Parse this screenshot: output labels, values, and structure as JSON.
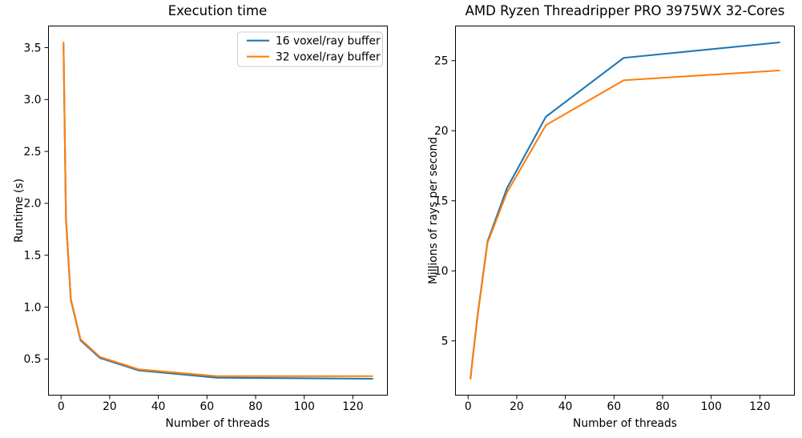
{
  "figure": {
    "background": "#ffffff",
    "text_color": "#000000",
    "accent_blue": "#1f77b4",
    "accent_orange": "#ff7f0e"
  },
  "chart_data": [
    {
      "type": "line",
      "title": "Execution time",
      "xlabel": "Number of threads",
      "ylabel": "Runtime (s)",
      "x": [
        1,
        2,
        4,
        8,
        16,
        32,
        64,
        128
      ],
      "series": [
        {
          "name": "16 voxel/ray buffer",
          "color": "#1f77b4",
          "values": [
            3.52,
            1.85,
            1.07,
            0.68,
            0.51,
            0.39,
            0.32,
            0.31
          ]
        },
        {
          "name": "32 voxel/ray buffer",
          "color": "#ff7f0e",
          "values": [
            3.55,
            1.87,
            1.08,
            0.69,
            0.52,
            0.4,
            0.335,
            0.335
          ]
        }
      ],
      "xlim": [
        -5.35,
        134.35
      ],
      "ylim": [
        0.148,
        3.712
      ],
      "xticks": [
        {
          "v": 0,
          "label": "0"
        },
        {
          "v": 20,
          "label": "20"
        },
        {
          "v": 40,
          "label": "40"
        },
        {
          "v": 60,
          "label": "60"
        },
        {
          "v": 80,
          "label": "80"
        },
        {
          "v": 100,
          "label": "100"
        },
        {
          "v": 120,
          "label": "120"
        }
      ],
      "yticks": [
        {
          "v": 0.5,
          "label": "0.5"
        },
        {
          "v": 1.0,
          "label": "1.0"
        },
        {
          "v": 1.5,
          "label": "1.5"
        },
        {
          "v": 2.0,
          "label": "2.0"
        },
        {
          "v": 2.5,
          "label": "2.5"
        },
        {
          "v": 3.0,
          "label": "3.0"
        },
        {
          "v": 3.5,
          "label": "3.5"
        }
      ],
      "grid": false,
      "legend": {
        "visible": true,
        "position": "upper right",
        "entries": [
          "16 voxel/ray buffer",
          "32 voxel/ray buffer"
        ]
      }
    },
    {
      "type": "line",
      "title": "AMD Ryzen Threadripper PRO 3975WX 32-Cores",
      "xlabel": "Number of threads",
      "ylabel": "Millions of rays per second",
      "x": [
        1,
        2,
        4,
        8,
        16,
        32,
        64,
        128
      ],
      "series": [
        {
          "name": "16 voxel/ray buffer",
          "color": "#1f77b4",
          "values": [
            2.35,
            3.95,
            6.95,
            12.1,
            15.9,
            21.0,
            25.2,
            26.3
          ]
        },
        {
          "name": "32 voxel/ray buffer",
          "color": "#ff7f0e",
          "values": [
            2.3,
            3.9,
            6.9,
            12.0,
            15.6,
            20.4,
            23.6,
            24.3
          ]
        }
      ],
      "xlim": [
        -5.35,
        134.35
      ],
      "ylim": [
        1.1,
        27.5
      ],
      "xticks": [
        {
          "v": 0,
          "label": "0"
        },
        {
          "v": 20,
          "label": "20"
        },
        {
          "v": 40,
          "label": "40"
        },
        {
          "v": 60,
          "label": "60"
        },
        {
          "v": 80,
          "label": "80"
        },
        {
          "v": 100,
          "label": "100"
        },
        {
          "v": 120,
          "label": "120"
        }
      ],
      "yticks": [
        {
          "v": 5,
          "label": "5"
        },
        {
          "v": 10,
          "label": "10"
        },
        {
          "v": 15,
          "label": "15"
        },
        {
          "v": 20,
          "label": "20"
        },
        {
          "v": 25,
          "label": "25"
        }
      ],
      "grid": false,
      "legend": {
        "visible": false,
        "position": null,
        "entries": []
      }
    }
  ]
}
